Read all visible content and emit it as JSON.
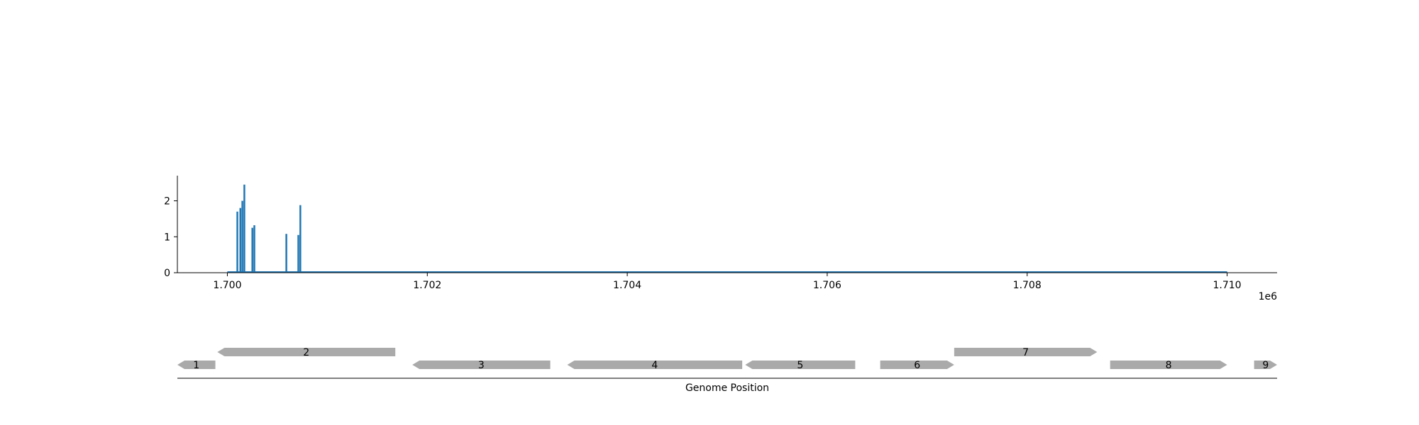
{
  "chart_data": [
    {
      "type": "bar",
      "x_min": 1699500,
      "x_max": 1710500,
      "ylim": [
        0,
        2.7
      ],
      "xlabel": "",
      "ylabel": "",
      "x_ticks": [
        1700000,
        1702000,
        1704000,
        1706000,
        1708000,
        1710000
      ],
      "x_tick_labels": [
        "1.700",
        "1.702",
        "1.704",
        "1.706",
        "1.708",
        "1.710"
      ],
      "x_offset_label": "1e6",
      "y_ticks": [
        0,
        1,
        2
      ],
      "y_tick_labels": [
        "0",
        "1",
        "2"
      ],
      "baseline": [
        1700000,
        1710000
      ],
      "color": "#1f77b4",
      "series": [
        {
          "x": [
            1700100,
            1700130,
            1700150,
            1700170,
            1700250,
            1700270,
            1700590,
            1700710,
            1700730
          ],
          "values": [
            1.7,
            1.8,
            2.0,
            2.45,
            1.25,
            1.32,
            1.08,
            1.05,
            1.88
          ]
        }
      ]
    },
    {
      "type": "gene_track",
      "xlabel": "Genome Position",
      "color": "#aaaaaa",
      "genes": [
        {
          "label": "1",
          "start": 1699500,
          "end": 1699880,
          "strand": "-",
          "row": 0
        },
        {
          "label": "2",
          "start": 1699900,
          "end": 1701680,
          "strand": "-",
          "row": 1
        },
        {
          "label": "3",
          "start": 1701850,
          "end": 1703230,
          "strand": "-",
          "row": 0
        },
        {
          "label": "4",
          "start": 1703400,
          "end": 1705150,
          "strand": "-",
          "row": 0
        },
        {
          "label": "5",
          "start": 1705180,
          "end": 1706280,
          "strand": "-",
          "row": 0
        },
        {
          "label": "6",
          "start": 1706530,
          "end": 1707270,
          "strand": "+",
          "row": 0
        },
        {
          "label": "7",
          "start": 1707270,
          "end": 1708700,
          "strand": "+",
          "row": 1
        },
        {
          "label": "8",
          "start": 1708830,
          "end": 1710000,
          "strand": "+",
          "row": 0
        },
        {
          "label": "9",
          "start": 1710270,
          "end": 1710500,
          "strand": "+",
          "row": 0
        }
      ]
    }
  ]
}
